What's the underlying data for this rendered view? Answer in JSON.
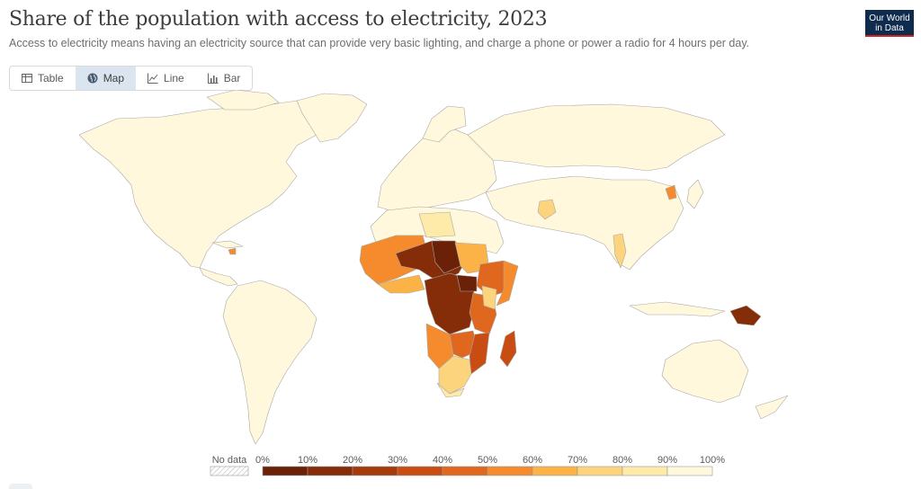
{
  "title": "Share of the population with access to electricity, 2023",
  "subtitle": "Access to electricity means having an electricity source that can provide very basic lighting, and charge a phone or power a radio for 4 hours per day.",
  "logo": {
    "line1": "Our World",
    "line2": "in Data"
  },
  "tabs": [
    {
      "label": "Table",
      "icon": "table-icon"
    },
    {
      "label": "Map",
      "icon": "globe-icon",
      "active": true
    },
    {
      "label": "Line",
      "icon": "line-chart-icon"
    },
    {
      "label": "Bar",
      "icon": "bar-chart-icon"
    }
  ],
  "legend": {
    "no_data_label": "No data",
    "no_data_color": "#e8e8e8",
    "ticks": [
      "0%",
      "10%",
      "20%",
      "30%",
      "40%",
      "50%",
      "60%",
      "70%",
      "80%",
      "90%",
      "100%"
    ],
    "bins": [
      {
        "from": 0,
        "to": 10,
        "color": "#6b2108"
      },
      {
        "from": 10,
        "to": 20,
        "color": "#852c08"
      },
      {
        "from": 20,
        "to": 30,
        "color": "#a53a0a"
      },
      {
        "from": 30,
        "to": 40,
        "color": "#c94c12"
      },
      {
        "from": 40,
        "to": 50,
        "color": "#e0671e"
      },
      {
        "from": 50,
        "to": 60,
        "color": "#f58b2c"
      },
      {
        "from": 60,
        "to": 70,
        "color": "#fbb247"
      },
      {
        "from": 70,
        "to": 80,
        "color": "#fdd47e"
      },
      {
        "from": 80,
        "to": 90,
        "color": "#feeaa9"
      },
      {
        "from": 90,
        "to": 100,
        "color": "#fff8dc"
      }
    ]
  },
  "map_colors": {
    "land_high": "#fff8dc",
    "border": "#aaaaaa"
  }
}
